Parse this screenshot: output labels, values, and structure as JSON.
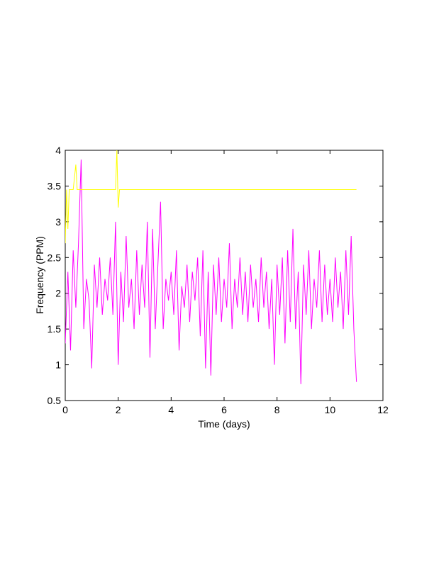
{
  "chart_data": {
    "type": "line",
    "xlabel": "Time (days)",
    "ylabel": "Frequency (PPM)",
    "xlim": [
      0,
      12
    ],
    "xticks": [
      0,
      2,
      4,
      6,
      8,
      10,
      12
    ],
    "ylim": [
      0.5,
      4
    ],
    "yticks": [
      0.5,
      1,
      1.5,
      2,
      2.5,
      3,
      3.5,
      4
    ],
    "grid": false,
    "series": [
      {
        "color": "#ff00ff",
        "x": [
          0,
          0.1,
          0.2,
          0.3,
          0.4,
          0.5,
          0.6,
          0.7,
          0.8,
          0.9,
          1,
          1.1,
          1.2,
          1.3,
          1.4,
          1.5,
          1.6,
          1.7,
          1.8,
          1.9,
          2,
          2.1,
          2.2,
          2.3,
          2.4,
          2.5,
          2.6,
          2.7,
          2.8,
          2.9,
          3,
          3.1,
          3.2,
          3.3,
          3.4,
          3.5,
          3.6,
          3.7,
          3.8,
          3.9,
          4,
          4.1,
          4.2,
          4.3,
          4.4,
          4.5,
          4.6,
          4.7,
          4.8,
          4.9,
          5,
          5.1,
          5.2,
          5.3,
          5.4,
          5.5,
          5.6,
          5.7,
          5.8,
          5.9,
          6,
          6.1,
          6.2,
          6.3,
          6.4,
          6.5,
          6.6,
          6.7,
          6.8,
          6.9,
          7,
          7.1,
          7.2,
          7.3,
          7.4,
          7.5,
          7.6,
          7.7,
          7.8,
          7.9,
          8,
          8.1,
          8.2,
          8.3,
          8.4,
          8.5,
          8.6,
          8.7,
          8.8,
          8.9,
          9,
          9.1,
          9.2,
          9.3,
          9.4,
          9.5,
          9.6,
          9.7,
          9.8,
          9.9,
          10,
          10.1,
          10.2,
          10.3,
          10.4,
          10.5,
          10.6,
          10.7,
          10.8,
          10.9,
          11
        ],
        "values": [
          1.3,
          2.3,
          1.2,
          2.6,
          1.8,
          2.7,
          3.87,
          1.5,
          2.2,
          1.9,
          0.95,
          2.4,
          1.8,
          2.5,
          1.7,
          2.2,
          1.9,
          2.5,
          1.7,
          3.0,
          1.0,
          2.3,
          1.6,
          2.8,
          1.8,
          2.2,
          1.5,
          2.6,
          1.7,
          2.4,
          1.8,
          3.0,
          1.1,
          2.9,
          1.5,
          2.4,
          3.28,
          1.5,
          2.2,
          1.9,
          2.3,
          1.7,
          2.6,
          1.2,
          2.1,
          1.8,
          2.4,
          1.6,
          2.3,
          1.9,
          2.5,
          1.4,
          2.6,
          0.95,
          2.3,
          0.85,
          2.4,
          1.7,
          2.5,
          1.6,
          2.2,
          1.8,
          2.7,
          1.5,
          2.2,
          1.8,
          2.5,
          1.7,
          2.3,
          1.6,
          2.4,
          1.8,
          2.2,
          1.6,
          2.5,
          1.8,
          2.3,
          1.5,
          2.2,
          1.0,
          2.4,
          1.7,
          2.5,
          1.3,
          2.6,
          1.6,
          2.9,
          1.5,
          2.3,
          0.73,
          2.4,
          1.7,
          2.6,
          1.5,
          2.2,
          1.8,
          2.6,
          1.6,
          2.4,
          1.7,
          2.2,
          1.6,
          2.5,
          1.8,
          2.3,
          1.5,
          2.6,
          1.7,
          2.8,
          1.5,
          0.76
        ]
      },
      {
        "color": "#ffff00",
        "x": [
          0,
          0.05,
          0.1,
          0.15,
          0.3,
          0.4,
          0.45,
          0.5,
          1.9,
          1.95,
          2.0,
          2.05,
          11
        ],
        "values": [
          2.7,
          3.45,
          2.9,
          3.45,
          3.45,
          3.8,
          3.45,
          3.45,
          3.45,
          4.0,
          3.2,
          3.45,
          3.45
        ]
      }
    ]
  }
}
